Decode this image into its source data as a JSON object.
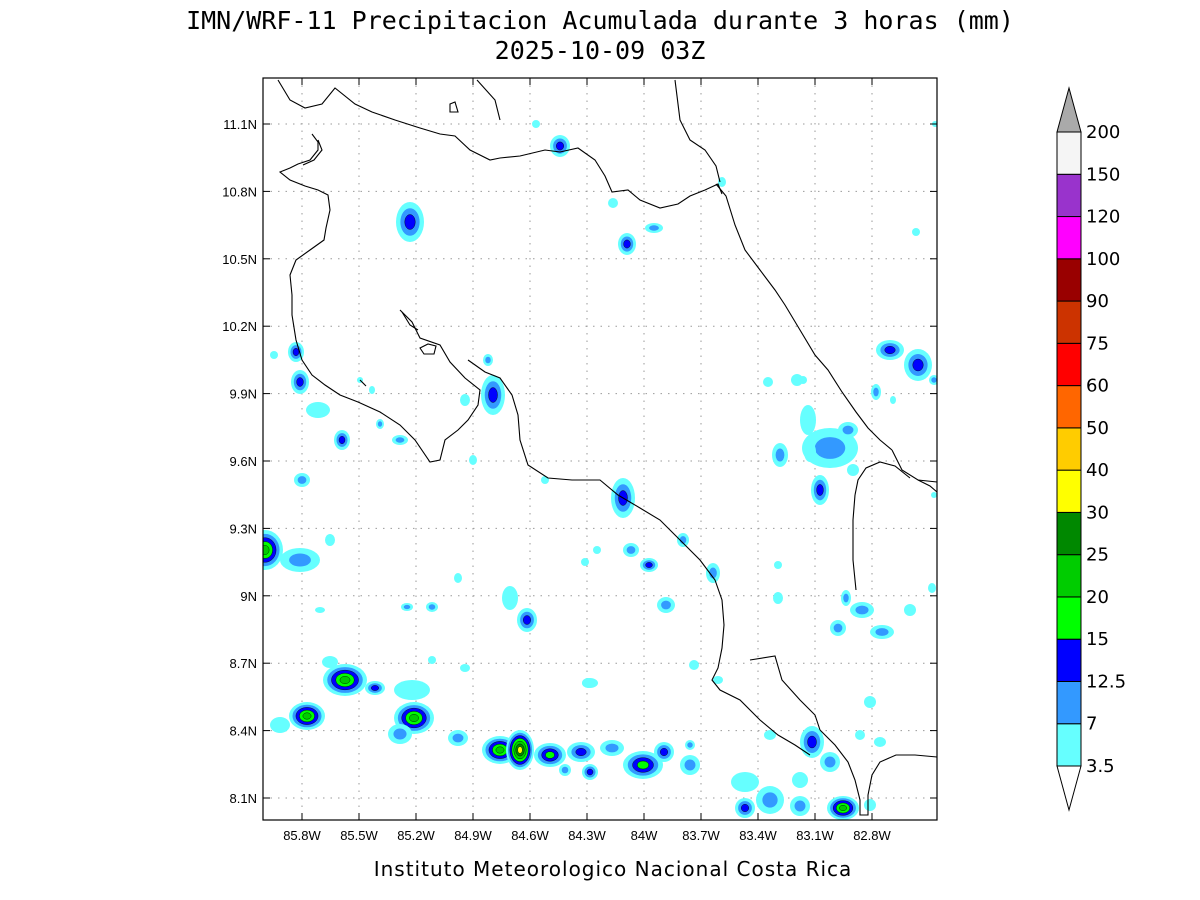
{
  "map": {
    "title_line1": "IMN/WRF-11 Precipitacion Acumulada durante 3 horas (mm)",
    "title_line2": "2025-10-09 03Z",
    "credit": "Instituto Meteorologico Nacional Costa Rica",
    "x_tick_labels": [
      "85.8W",
      "85.5W",
      "85.2W",
      "84.9W",
      "84.6W",
      "84.3W",
      "84W",
      "83.7W",
      "83.4W",
      "83.1W",
      "82.8W"
    ],
    "y_tick_labels": [
      "11.1N",
      "10.8N",
      "10.5N",
      "10.2N",
      "9.9N",
      "9.6N",
      "9.3N",
      "9N",
      "8.7N",
      "8.4N",
      "8.1N"
    ],
    "colorbar": {
      "levels": [
        "3.5",
        "7",
        "12.5",
        "15",
        "20",
        "25",
        "30",
        "40",
        "50",
        "60",
        "75",
        "90",
        "100",
        "120",
        "150",
        "200"
      ],
      "colors": [
        "#66ffff",
        "#3399ff",
        "#0000ff",
        "#00ff00",
        "#00cc00",
        "#008800",
        "#ffff00",
        "#ffcc00",
        "#ff6600",
        "#ff0000",
        "#cc3300",
        "#990000",
        "#ff00ff",
        "#9933cc",
        "#f5f5f5",
        "#aaaaaa"
      ]
    },
    "intensity_colors": {
      "3.5": "#66ffff",
      "7": "#3399ff",
      "12.5": "#0000ff",
      "15": "#00ff00",
      "20": "#00cc00",
      "25": "#008800",
      "30": "#ffff00"
    }
  }
}
